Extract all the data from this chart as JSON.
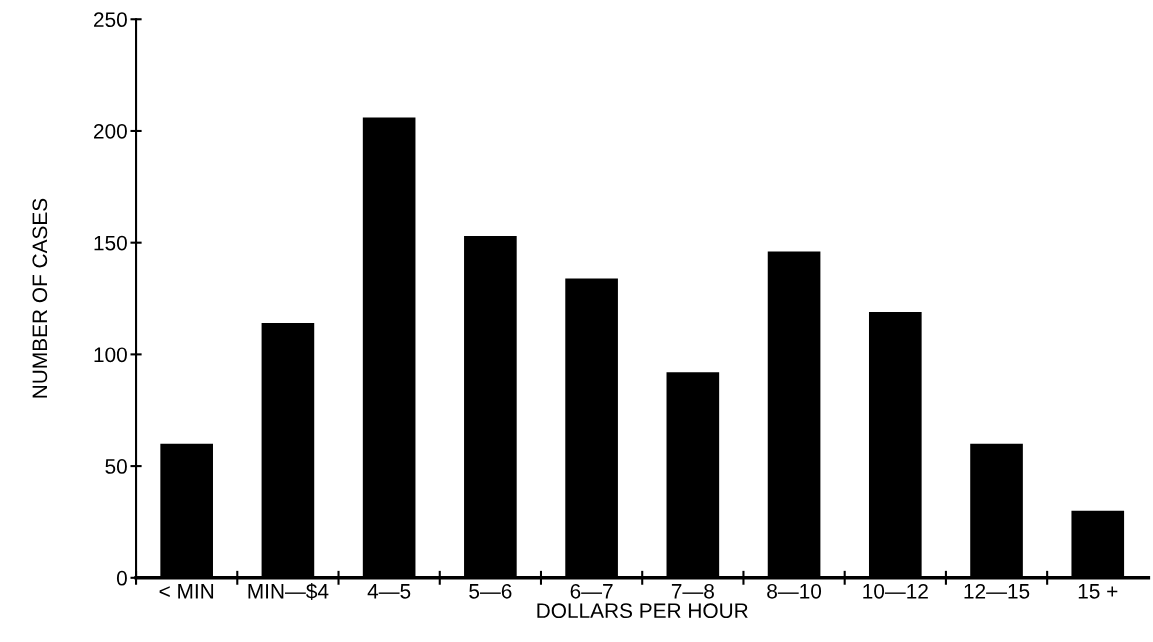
{
  "chart_data": {
    "type": "bar",
    "xlabel": "DOLLARS PER HOUR",
    "ylabel": "NUMBER OF CASES",
    "categories": [
      "< MIN",
      "MIN—$4",
      "4—5",
      "5—6",
      "6—7",
      "7—8",
      "8—10",
      "10—12",
      "12—15",
      "15 +"
    ],
    "values": [
      60,
      114,
      206,
      153,
      134,
      92,
      146,
      119,
      60,
      30
    ],
    "color": "#000000",
    "ylim": [
      0,
      250
    ],
    "yticks": [
      0,
      50,
      100,
      150,
      200,
      250
    ],
    "grid": false,
    "legend": false
  }
}
